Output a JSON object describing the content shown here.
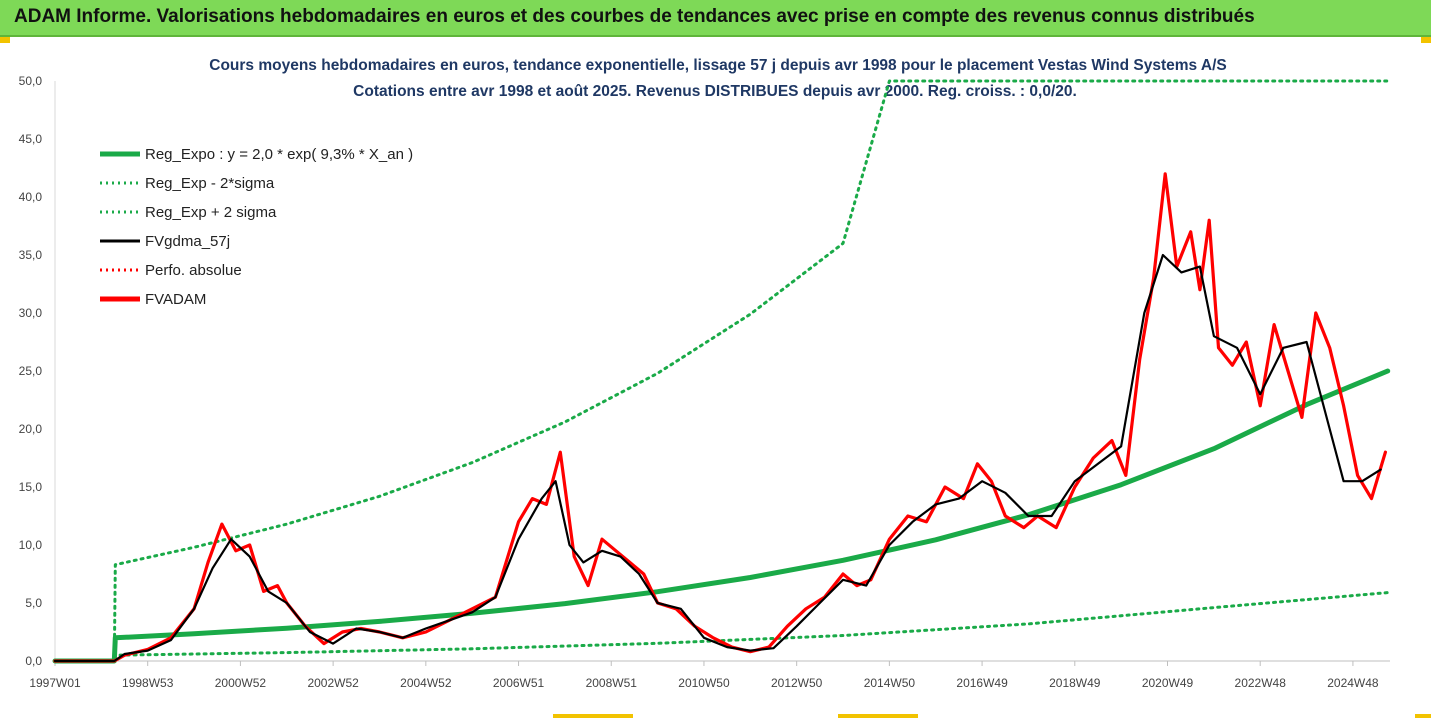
{
  "header": {
    "title": "ADAM Informe. Valorisations hebdomadaires en euros et des courbes de tendances avec prise en compte des revenus connus distribués"
  },
  "chart_data": {
    "type": "line",
    "subtitle_line1": "Cours moyens hebdomadaires en euros, tendance exponentielle, lissage 57 j depuis avr 1998 pour le placement Vestas Wind Systems A/S",
    "subtitle_line2": "Cotations entre avr 1998 et août 2025. Revenus DISTRIBUES depuis avr 2000. Reg. croiss. : 0,0/20.",
    "x_tick_labels": [
      "1997W01",
      "1998W53",
      "2000W52",
      "2002W52",
      "2004W52",
      "2006W51",
      "2008W51",
      "2010W50",
      "2012W50",
      "2014W50",
      "2016W49",
      "2018W49",
      "2020W49",
      "2022W48",
      "2024W48"
    ],
    "y_tick_labels": [
      "0,0",
      "5,0",
      "10,0",
      "15,0",
      "20,0",
      "25,0",
      "30,0",
      "35,0",
      "40,0",
      "45,0",
      "50,0"
    ],
    "x_range": [
      1997.0,
      2025.8
    ],
    "ylim": [
      0,
      50
    ],
    "grid": false,
    "legend_position": "top-left",
    "colors": {
      "green": "#1aaa48",
      "black": "#000000",
      "red": "#ff0000",
      "banner": "#7ed957"
    },
    "legend": [
      {
        "label": "Reg_Expo : y = 2,0 * exp( 9,3% *  X_an )",
        "color": "#1aaa48",
        "style": "solid-thick"
      },
      {
        "label": "Reg_Exp - 2*sigma",
        "color": "#1aaa48",
        "style": "dotted"
      },
      {
        "label": "Reg_Exp + 2 sigma",
        "color": "#1aaa48",
        "style": "dotted"
      },
      {
        "label": "FVgdma_57j",
        "color": "#000000",
        "style": "solid"
      },
      {
        "label": "Perfo. absolue",
        "color": "#ff0000",
        "style": "dotted"
      },
      {
        "label": "FVADAM",
        "color": "#ff0000",
        "style": "solid-thick"
      }
    ],
    "series": [
      {
        "name": "Reg_Expo : y = 2,0 * exp( 9,3% *  X_an )",
        "x": [
          1997.0,
          1998.28,
          1998.3,
          2000,
          2002,
          2004,
          2006,
          2008,
          2010,
          2012,
          2014,
          2016,
          2018,
          2020,
          2022,
          2024,
          2025.75
        ],
        "values": [
          0,
          0,
          2.0,
          2.35,
          2.83,
          3.41,
          4.11,
          4.95,
          5.97,
          7.2,
          8.68,
          10.45,
          12.6,
          15.2,
          18.3,
          22.1,
          25.0
        ]
      },
      {
        "name": "Reg_Exp - 2*sigma",
        "x": [
          1997.0,
          1998.28,
          1998.3,
          2002,
          2006,
          2010,
          2014,
          2018,
          2022,
          2025.75
        ],
        "values": [
          0,
          0,
          0.5,
          0.72,
          1.05,
          1.53,
          2.2,
          3.2,
          4.6,
          5.9
        ]
      },
      {
        "name": "Reg_Exp + 2 sigma",
        "x": [
          1997.0,
          1998.28,
          1998.3,
          2000,
          2002,
          2004,
          2006,
          2008,
          2010,
          2012,
          2014,
          2015,
          2025.75
        ],
        "values": [
          0,
          0,
          8.3,
          9.8,
          11.8,
          14.2,
          17.1,
          20.6,
          24.8,
          29.9,
          36.0,
          50.0,
          50.0
        ]
      },
      {
        "name": "FVgdma_57j",
        "x": [
          1997.0,
          1998.28,
          1998.5,
          1999.0,
          1999.5,
          2000.0,
          2000.4,
          2000.8,
          2001.2,
          2001.6,
          2002.0,
          2002.5,
          2003.0,
          2003.5,
          2004.0,
          2004.5,
          2005.0,
          2005.5,
          2006.0,
          2006.5,
          2007.0,
          2007.5,
          2007.8,
          2008.1,
          2008.4,
          2008.8,
          2009.2,
          2009.6,
          2010.0,
          2010.5,
          2011.0,
          2011.5,
          2012.0,
          2012.5,
          2013.0,
          2013.5,
          2014.0,
          2014.5,
          2015.0,
          2015.5,
          2016.0,
          2016.5,
          2017.0,
          2017.5,
          2018.0,
          2018.5,
          2019.0,
          2019.5,
          2020.0,
          2020.5,
          2020.9,
          2021.3,
          2021.7,
          2022.0,
          2022.5,
          2023.0,
          2023.5,
          2024.0,
          2024.5,
          2024.8,
          2025.2,
          2025.6
        ],
        "values": [
          0,
          0,
          0.6,
          0.9,
          1.8,
          4.5,
          8.0,
          10.5,
          9.0,
          6.0,
          5.0,
          2.5,
          1.5,
          2.8,
          2.5,
          2.0,
          2.8,
          3.5,
          4.2,
          5.5,
          10.5,
          14.0,
          15.5,
          10.0,
          8.5,
          9.5,
          9.0,
          7.5,
          5.0,
          4.5,
          2.0,
          1.2,
          0.9,
          1.1,
          3.0,
          5.0,
          7.0,
          6.5,
          10.0,
          12.0,
          13.5,
          14.0,
          15.5,
          14.5,
          12.5,
          12.5,
          15.5,
          17.0,
          18.5,
          30.0,
          35.0,
          33.5,
          34.0,
          28.0,
          27.0,
          23.0,
          27.0,
          27.5,
          20.0,
          15.5,
          15.5,
          16.5
        ]
      },
      {
        "name": "FVADAM",
        "x": [
          1997.0,
          1998.28,
          1998.5,
          1999.0,
          1999.5,
          2000.0,
          2000.3,
          2000.6,
          2000.9,
          2001.2,
          2001.5,
          2001.8,
          2002.0,
          2002.4,
          2002.8,
          2003.2,
          2003.6,
          2004.0,
          2004.5,
          2005.0,
          2005.5,
          2006.0,
          2006.5,
          2007.0,
          2007.3,
          2007.6,
          2007.9,
          2008.2,
          2008.5,
          2008.8,
          2009.1,
          2009.4,
          2009.7,
          2010.0,
          2010.4,
          2010.8,
          2011.2,
          2011.6,
          2012.0,
          2012.4,
          2012.8,
          2013.2,
          2013.6,
          2014.0,
          2014.3,
          2014.6,
          2015.0,
          2015.4,
          2015.8,
          2016.2,
          2016.6,
          2016.9,
          2017.2,
          2017.5,
          2017.9,
          2018.2,
          2018.6,
          2019.0,
          2019.4,
          2019.8,
          2020.1,
          2020.4,
          2020.7,
          2020.95,
          2021.2,
          2021.5,
          2021.7,
          2021.9,
          2022.1,
          2022.4,
          2022.7,
          2023.0,
          2023.3,
          2023.6,
          2023.9,
          2024.2,
          2024.5,
          2024.8,
          2025.1,
          2025.4,
          2025.7
        ],
        "values": [
          0,
          0,
          0.5,
          1.0,
          2.0,
          4.5,
          8.5,
          11.8,
          9.5,
          10.0,
          6.0,
          6.5,
          5.0,
          3.0,
          1.5,
          2.5,
          2.8,
          2.5,
          2.0,
          2.5,
          3.5,
          4.5,
          5.5,
          12.0,
          14.0,
          13.5,
          18.0,
          9.0,
          6.5,
          10.5,
          9.5,
          8.5,
          7.5,
          5.0,
          4.5,
          3.0,
          2.0,
          1.2,
          0.8,
          1.2,
          3.0,
          4.5,
          5.5,
          7.5,
          6.5,
          7.0,
          10.5,
          12.5,
          12.0,
          15.0,
          14.0,
          17.0,
          15.5,
          12.5,
          11.5,
          12.5,
          11.5,
          15.0,
          17.5,
          19.0,
          16.0,
          26.0,
          33.0,
          42.0,
          34.0,
          37.0,
          32.0,
          38.0,
          27.0,
          25.5,
          27.5,
          22.0,
          29.0,
          25.0,
          21.0,
          30.0,
          27.0,
          22.0,
          16.0,
          14.0,
          18.0
        ]
      }
    ]
  }
}
